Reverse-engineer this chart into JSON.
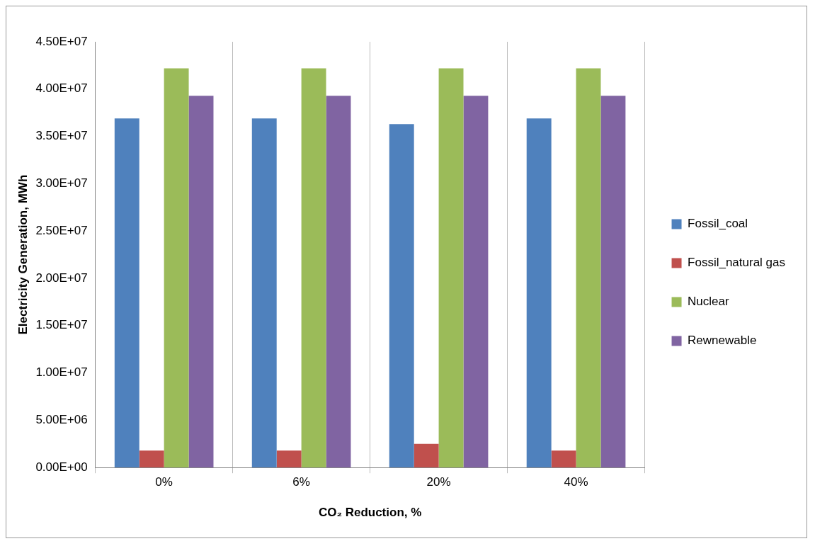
{
  "chart_data": {
    "type": "bar",
    "xlabel": "CO₂ Reduction, %",
    "ylabel": "Electricity Generation, MWh",
    "categories": [
      "0%",
      "6%",
      "20%",
      "40%"
    ],
    "series": [
      {
        "name": "Fossil_coal",
        "color": "#4f81bd",
        "values": [
          36900000,
          36900000,
          36300000,
          36900000
        ]
      },
      {
        "name": "Fossil_natural gas",
        "color": "#c0504d",
        "values": [
          1800000,
          1800000,
          2500000,
          1800000
        ]
      },
      {
        "name": "Nuclear",
        "color": "#9bbb59",
        "values": [
          42200000,
          42200000,
          42200000,
          42200000
        ]
      },
      {
        "name": "Rewnewable",
        "color": "#8064a2",
        "values": [
          39300000,
          39300000,
          39300000,
          39300000
        ]
      }
    ],
    "ylim": [
      0,
      45000000
    ],
    "yticks": [
      {
        "value": 0,
        "label": "0.00E+00"
      },
      {
        "value": 5000000,
        "label": "5.00E+06"
      },
      {
        "value": 10000000,
        "label": "1.00E+07"
      },
      {
        "value": 15000000,
        "label": "1.50E+07"
      },
      {
        "value": 20000000,
        "label": "2.00E+07"
      },
      {
        "value": 25000000,
        "label": "2.50E+07"
      },
      {
        "value": 30000000,
        "label": "3.00E+07"
      },
      {
        "value": 35000000,
        "label": "3.50E+07"
      },
      {
        "value": 40000000,
        "label": "4.00E+07"
      },
      {
        "value": 45000000,
        "label": "4.50E+07"
      }
    ],
    "grid": "x",
    "legend": "right"
  }
}
